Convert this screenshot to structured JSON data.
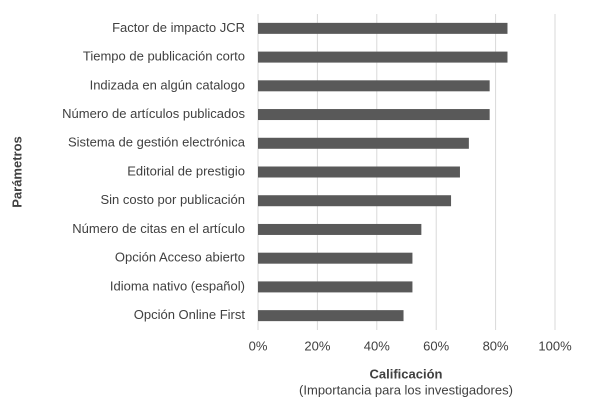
{
  "chart_data": {
    "type": "bar",
    "orientation": "horizontal",
    "x_label": "Calificación",
    "x_label_note": "(Importancia para los investigadores)",
    "y_label": "Parámetros",
    "categories": [
      "Factor de impacto JCR",
      "Tiempo de publicación corto",
      "Indizada en algún catalogo",
      "Número de artículos publicados",
      "Sistema de gestión electrónica",
      "Editorial de prestigio",
      "Sin costo por publicación",
      "Número de citas en el artículo",
      "Opción Acceso abierto",
      "Idioma nativo (español)",
      "Opción Online First"
    ],
    "values": [
      84,
      84,
      78,
      78,
      71,
      68,
      65,
      55,
      52,
      52,
      49
    ],
    "color": "#595959",
    "xlim": [
      0,
      100
    ],
    "xticks": [
      {
        "value": 0,
        "label": "0%"
      },
      {
        "value": 20,
        "label": "20%"
      },
      {
        "value": 40,
        "label": "40%"
      },
      {
        "value": 60,
        "label": "60%"
      },
      {
        "value": 80,
        "label": "80%"
      },
      {
        "value": 100,
        "label": "100%"
      }
    ],
    "grid": true
  }
}
